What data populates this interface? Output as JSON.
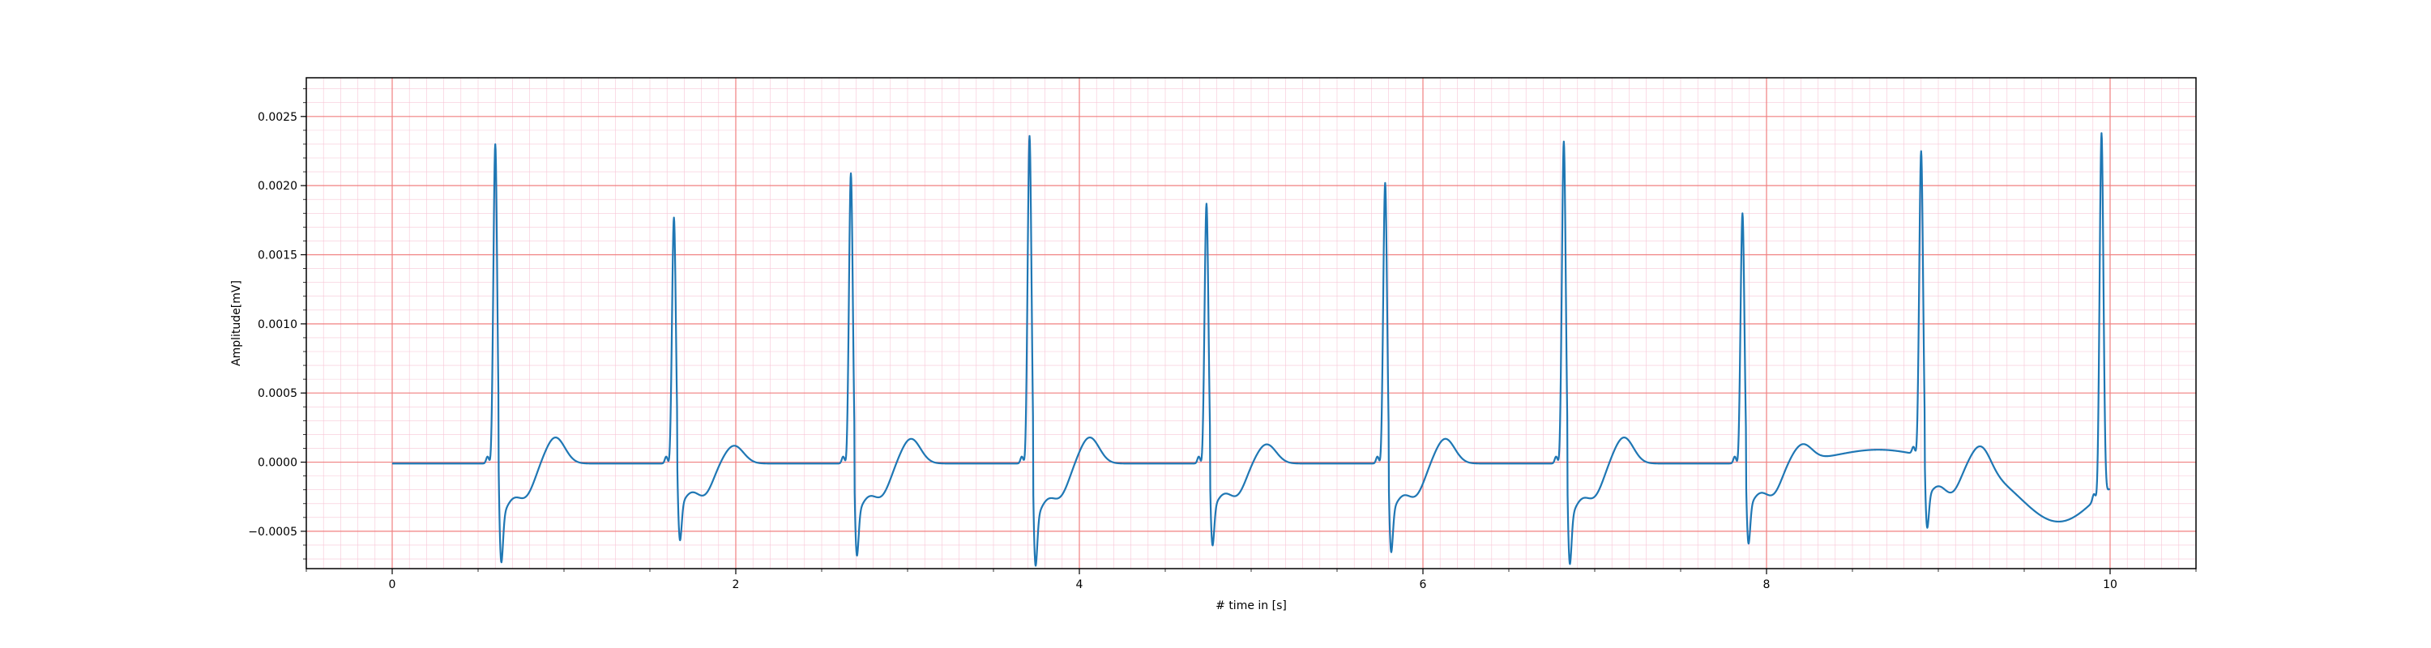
{
  "chart_data": {
    "type": "line",
    "title": "",
    "xlabel": "# time in [s]",
    "ylabel": "Amplitude[mV]",
    "xlim": [
      -0.5,
      10.5
    ],
    "ylim": [
      -0.00077,
      0.00278
    ],
    "x_ticks": [
      0,
      2,
      4,
      6,
      8,
      10
    ],
    "x_tick_labels": [
      "0",
      "2",
      "4",
      "6",
      "8",
      "10"
    ],
    "y_ticks": [
      -0.0005,
      0.0,
      0.0005,
      0.001,
      0.0015,
      0.002,
      0.0025
    ],
    "y_tick_labels": [
      "−0.0005",
      "0.0000",
      "0.0005",
      "0.0010",
      "0.0015",
      "0.0020",
      "0.0025"
    ],
    "grid": {
      "major": true,
      "minor": true,
      "major_color": "#f08080",
      "minor_color": "#f7c6d6",
      "x_minor_step": 0.1,
      "y_minor_step": 0.0001
    },
    "line_color": "#1f77b4",
    "series": [
      {
        "name": "",
        "beats": [
          {
            "r_time": 0.6,
            "r_peak": 0.00231,
            "s_trough": -0.00058,
            "t_peak": 0.00019
          },
          {
            "r_time": 1.64,
            "r_peak": 0.00178,
            "s_trough": -0.00045,
            "t_peak": 0.00013
          },
          {
            "r_time": 2.67,
            "r_peak": 0.0021,
            "s_trough": -0.00054,
            "t_peak": 0.00018
          },
          {
            "r_time": 3.71,
            "r_peak": 0.00237,
            "s_trough": -0.0006,
            "t_peak": 0.00019
          },
          {
            "r_time": 4.74,
            "r_peak": 0.00188,
            "s_trough": -0.00048,
            "t_peak": 0.00014
          },
          {
            "r_time": 5.78,
            "r_peak": 0.00203,
            "s_trough": -0.00052,
            "t_peak": 0.00018
          },
          {
            "r_time": 6.82,
            "r_peak": 0.00233,
            "s_trough": -0.00059,
            "t_peak": 0.00019
          },
          {
            "r_time": 7.86,
            "r_peak": 0.00181,
            "s_trough": -0.00047,
            "t_peak": 0.00012
          },
          {
            "r_time": 8.9,
            "r_peak": 0.0022,
            "s_trough": -0.00042,
            "t_peak": 0.00017
          },
          {
            "r_time": 9.95,
            "r_peak": 0.00261,
            "s_trough": -1e-05,
            "t_peak": 0.0
          }
        ]
      }
    ]
  }
}
